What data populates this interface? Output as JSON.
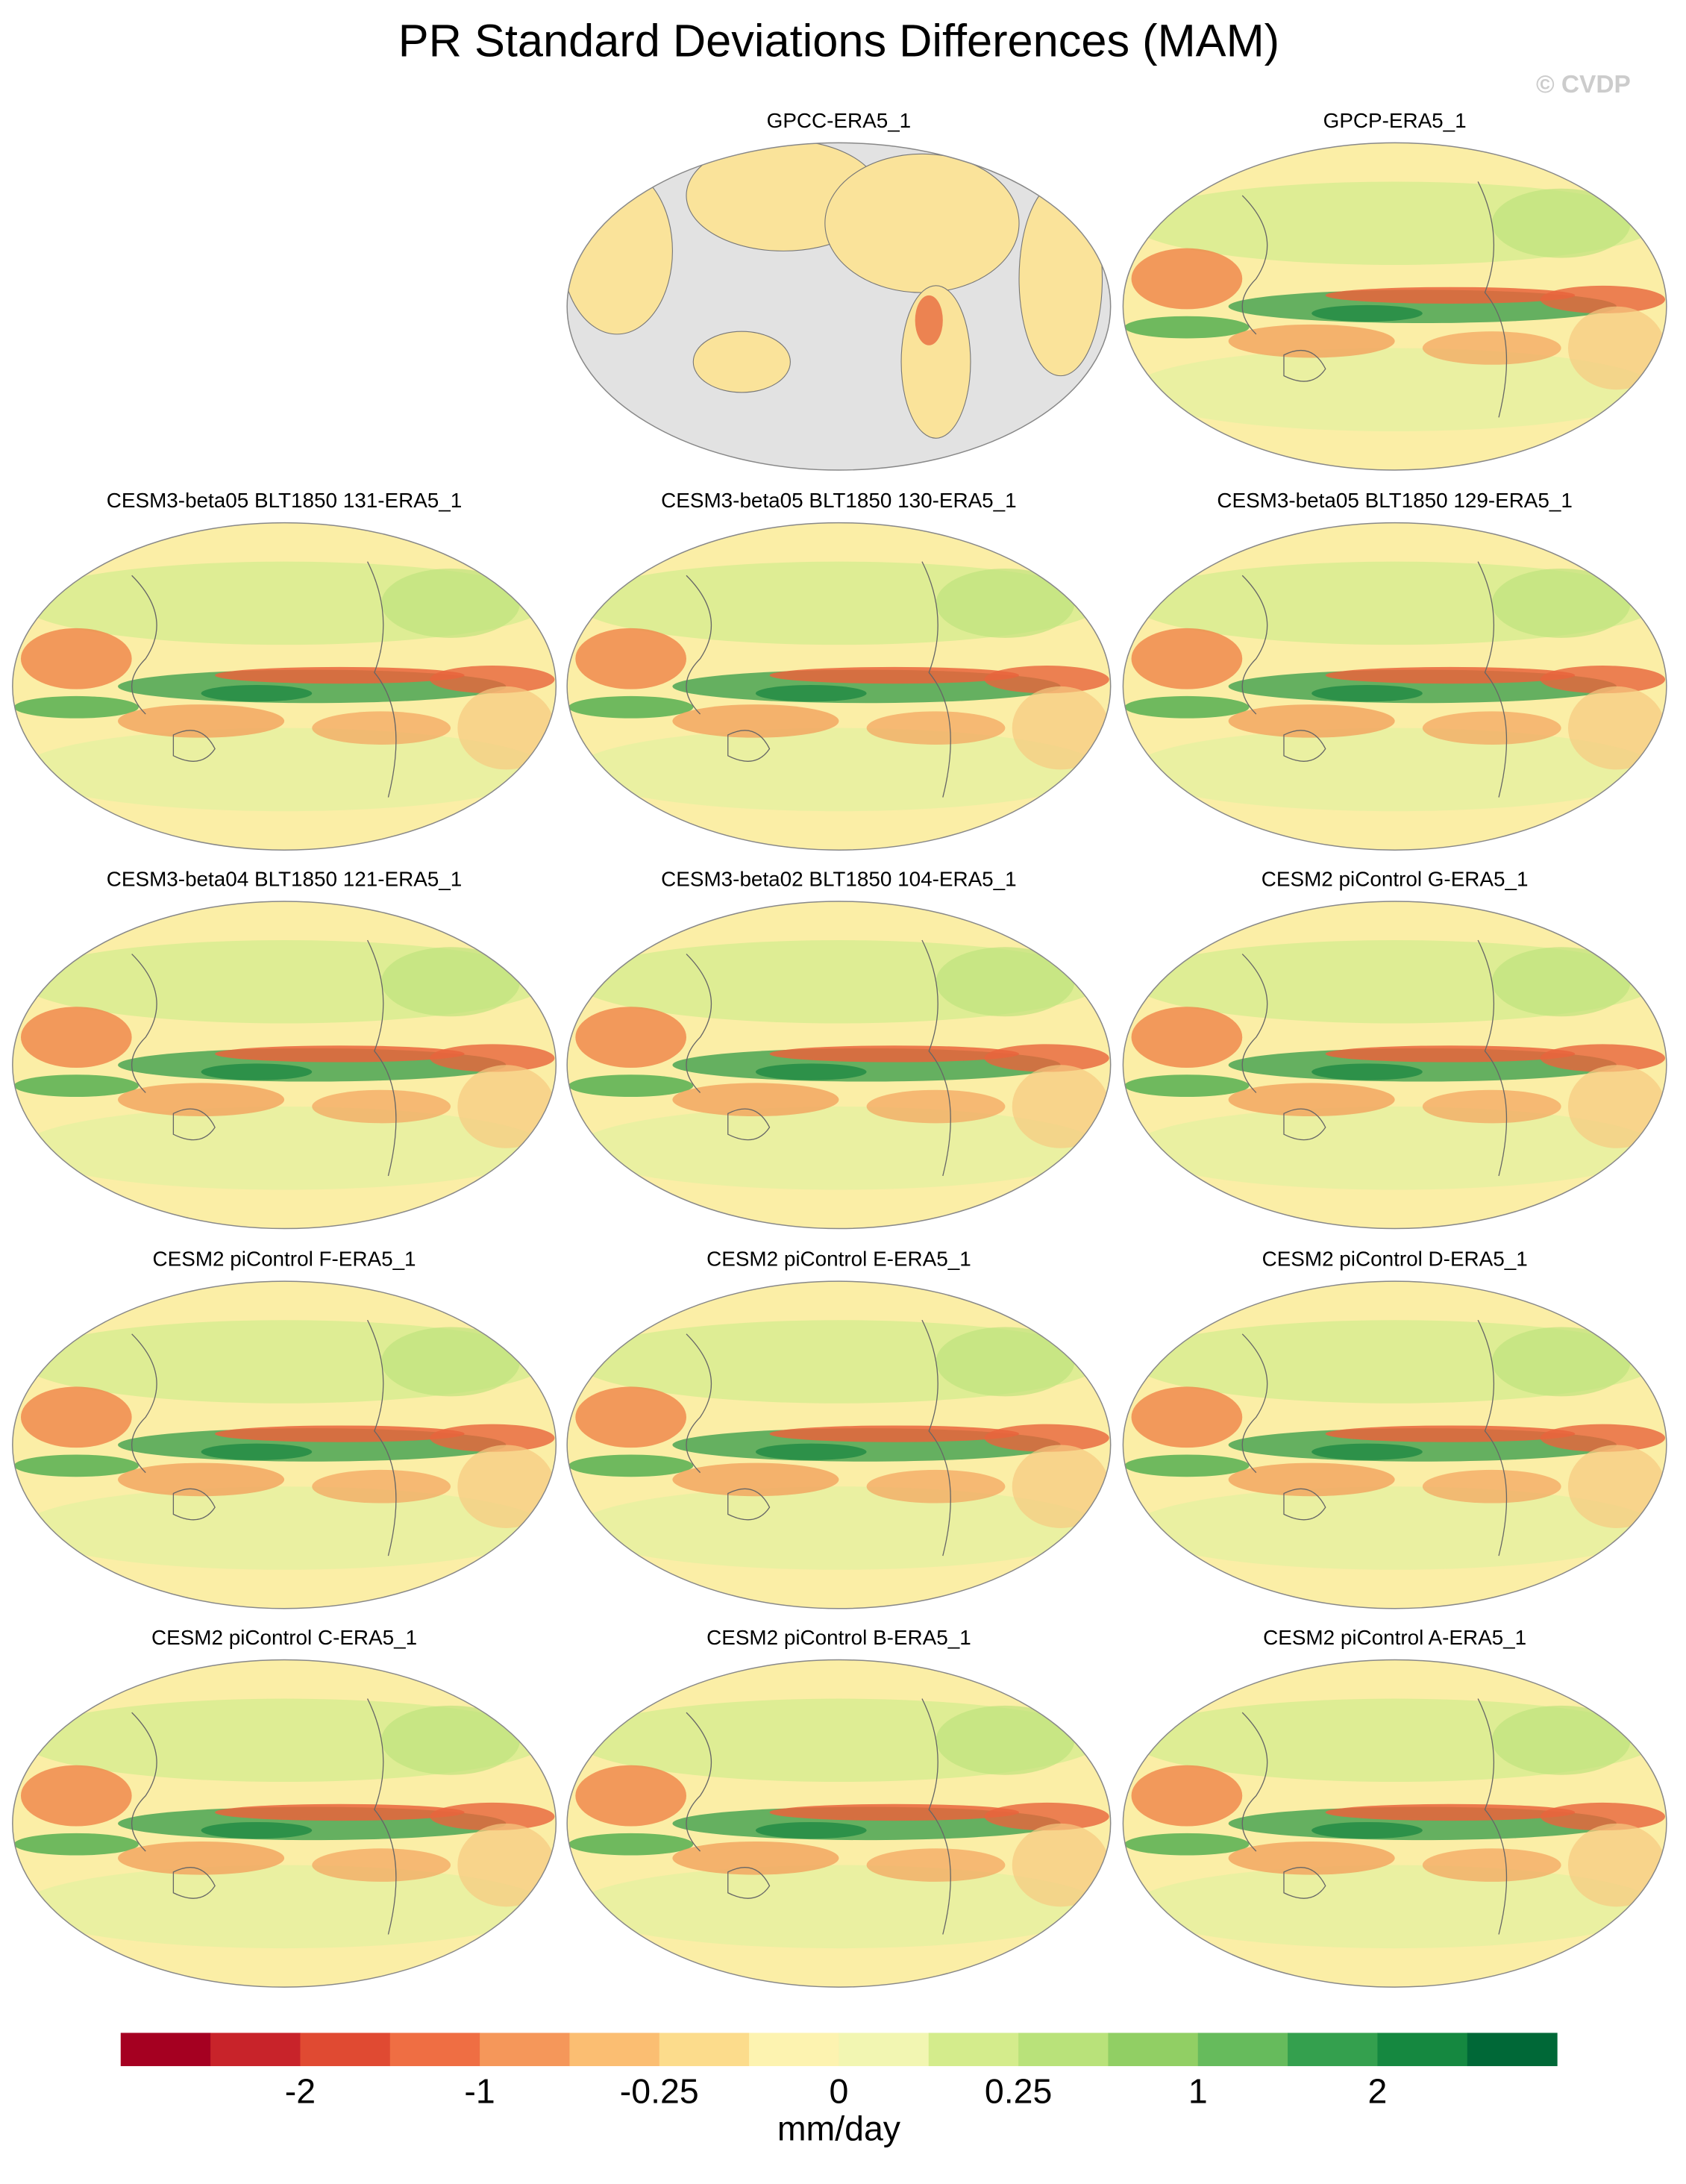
{
  "figure": {
    "title": "PR Standard Deviations Differences (MAM)",
    "watermark": "© CVDP",
    "panels": [
      {
        "title": "GPCC-ERA5_1"
      },
      {
        "title": "GPCP-ERA5_1"
      },
      {
        "title": "CESM3-beta05 BLT1850 131-ERA5_1"
      },
      {
        "title": "CESM3-beta05 BLT1850 130-ERA5_1"
      },
      {
        "title": "CESM3-beta05 BLT1850 129-ERA5_1"
      },
      {
        "title": "CESM3-beta04 BLT1850 121-ERA5_1"
      },
      {
        "title": "CESM3-beta02 BLT1850 104-ERA5_1"
      },
      {
        "title": "CESM2 piControl G-ERA5_1"
      },
      {
        "title": "CESM2 piControl F-ERA5_1"
      },
      {
        "title": "CESM2 piControl E-ERA5_1"
      },
      {
        "title": "CESM2 piControl D-ERA5_1"
      },
      {
        "title": "CESM2 piControl C-ERA5_1"
      },
      {
        "title": "CESM2 piControl B-ERA5_1"
      },
      {
        "title": "CESM2 piControl A-ERA5_1"
      }
    ],
    "colorbar": {
      "colors": [
        "#a50021",
        "#c8232a",
        "#e04a32",
        "#ef6e43",
        "#f5975a",
        "#fbbe72",
        "#fcdc8c",
        "#fdf3b0",
        "#f2f6b2",
        "#d4ec8c",
        "#b9e27a",
        "#91cf64",
        "#66bb5c",
        "#34a04e",
        "#158840",
        "#006837"
      ],
      "ticks": [
        -2,
        -1,
        -0.25,
        0,
        0.25,
        1,
        2
      ],
      "label": "mm/day"
    }
  }
}
